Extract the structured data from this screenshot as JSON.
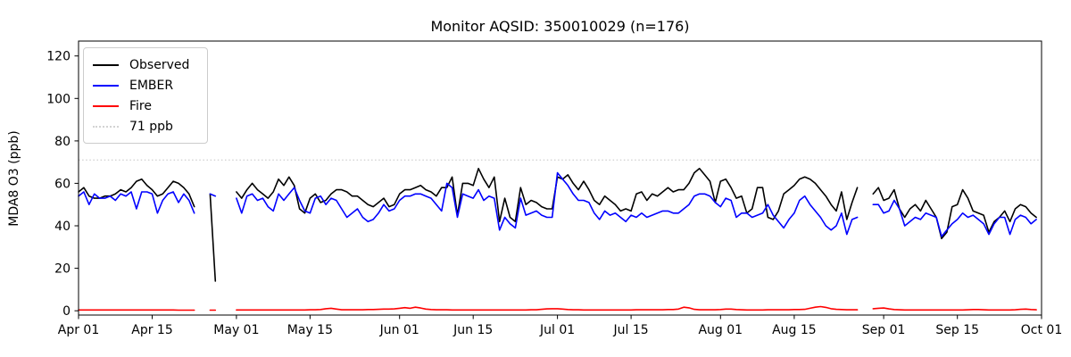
{
  "title": "Monitor AQSID: 350010029 (n=176)",
  "axes": {
    "ylabel": "MDA8 O3 (ppb)",
    "y_ticks": [
      0,
      20,
      40,
      60,
      80,
      100,
      120
    ],
    "x_ticks": [
      {
        "day": 0,
        "label": "Apr 01"
      },
      {
        "day": 14,
        "label": "Apr 15"
      },
      {
        "day": 30,
        "label": "May 01"
      },
      {
        "day": 44,
        "label": "May 15"
      },
      {
        "day": 61,
        "label": "Jun 01"
      },
      {
        "day": 75,
        "label": "Jun 15"
      },
      {
        "day": 91,
        "label": "Jul 01"
      },
      {
        "day": 105,
        "label": "Jul 15"
      },
      {
        "day": 122,
        "label": "Aug 01"
      },
      {
        "day": 136,
        "label": "Aug 15"
      },
      {
        "day": 153,
        "label": "Sep 01"
      },
      {
        "day": 167,
        "label": "Sep 15"
      },
      {
        "day": 183,
        "label": "Oct 01"
      }
    ]
  },
  "legend": [
    {
      "label": "Observed",
      "color": "#000000",
      "style": "solid"
    },
    {
      "label": "EMBER",
      "color": "#0000ff",
      "style": "solid"
    },
    {
      "label": "Fire",
      "color": "#ff0000",
      "style": "solid"
    },
    {
      "label": "71 ppb",
      "color": "#d3d3d3",
      "style": "dotted"
    }
  ],
  "chart_data": {
    "type": "line",
    "title": "Monitor AQSID: 350010029 (n=176)",
    "xlabel": "",
    "ylabel": "MDA8 O3 (ppb)",
    "x_unit": "days since Apr 01 (tick labels Apr 01 - Oct 01)",
    "n_days": 183,
    "ylim": [
      -2,
      127
    ],
    "grid": false,
    "legend_position": "upper left",
    "threshold_ppb": 71,
    "n_points": 176,
    "series": [
      {
        "name": "Observed",
        "color": "#000000",
        "values": [
          56,
          58,
          54,
          53,
          53,
          54,
          54,
          55,
          57,
          56,
          58,
          61,
          62,
          59,
          57,
          54,
          55,
          58,
          61,
          60,
          58,
          55,
          49,
          null,
          null,
          55,
          14,
          null,
          null,
          null,
          56,
          53,
          57,
          60,
          57,
          55,
          53,
          56,
          62,
          59,
          63,
          59,
          48,
          46,
          53,
          55,
          51,
          52,
          55,
          57,
          57,
          56,
          54,
          54,
          52,
          50,
          49,
          51,
          53,
          49,
          50,
          55,
          57,
          57,
          58,
          59,
          57,
          56,
          54,
          58,
          58,
          63,
          45,
          60,
          60,
          59,
          67,
          62,
          58,
          63,
          42,
          53,
          44,
          42,
          58,
          50,
          52,
          51,
          49,
          48,
          48,
          63,
          62,
          64,
          60,
          57,
          61,
          57,
          52,
          50,
          54,
          52,
          50,
          47,
          48,
          47,
          55,
          56,
          52,
          55,
          54,
          56,
          58,
          56,
          57,
          57,
          60,
          65,
          67,
          64,
          61,
          51,
          61,
          62,
          58,
          53,
          54,
          46,
          48,
          58,
          58,
          44,
          43,
          47,
          55,
          57,
          59,
          62,
          63,
          62,
          60,
          57,
          54,
          50,
          47,
          56,
          43,
          51,
          58,
          null,
          null,
          55,
          58,
          52,
          53,
          57,
          48,
          44,
          48,
          50,
          47,
          52,
          48,
          44,
          34,
          37,
          49,
          50,
          57,
          53,
          47,
          46,
          45,
          37,
          42,
          44,
          47,
          42,
          48,
          50,
          49,
          46,
          44
        ]
      },
      {
        "name": "EMBER",
        "color": "#0000ff",
        "values": [
          54,
          56,
          50,
          55,
          53,
          53,
          54,
          52,
          55,
          54,
          56,
          48,
          56,
          56,
          55,
          46,
          52,
          55,
          56,
          51,
          55,
          52,
          46,
          null,
          null,
          55,
          54,
          null,
          null,
          null,
          53,
          46,
          54,
          55,
          52,
          53,
          49,
          47,
          55,
          52,
          55,
          58,
          52,
          47,
          46,
          53,
          54,
          50,
          53,
          52,
          48,
          44,
          46,
          48,
          44,
          42,
          43,
          46,
          50,
          47,
          48,
          52,
          54,
          54,
          55,
          55,
          54,
          53,
          50,
          47,
          60,
          58,
          44,
          55,
          54,
          53,
          57,
          52,
          54,
          53,
          38,
          44,
          41,
          39,
          53,
          45,
          46,
          47,
          45,
          44,
          44,
          65,
          62,
          59,
          55,
          52,
          52,
          51,
          46,
          43,
          47,
          45,
          46,
          44,
          42,
          45,
          44,
          46,
          44,
          45,
          46,
          47,
          47,
          46,
          46,
          48,
          50,
          54,
          55,
          55,
          54,
          51,
          49,
          53,
          52,
          44,
          46,
          46,
          44,
          45,
          46,
          50,
          45,
          42,
          39,
          43,
          46,
          52,
          54,
          50,
          47,
          44,
          40,
          38,
          40,
          46,
          36,
          43,
          44,
          null,
          null,
          50,
          50,
          46,
          47,
          52,
          48,
          40,
          42,
          44,
          43,
          46,
          45,
          44,
          35,
          38,
          41,
          43,
          46,
          44,
          45,
          43,
          41,
          36,
          41,
          44,
          44,
          36,
          43,
          45,
          44,
          41,
          43
        ]
      },
      {
        "name": "Fire",
        "color": "#ff0000",
        "values": [
          0.4,
          0.4,
          0.4,
          0.4,
          0.4,
          0.4,
          0.4,
          0.4,
          0.4,
          0.4,
          0.4,
          0.4,
          0.4,
          0.4,
          0.4,
          0.4,
          0.4,
          0.4,
          0.4,
          0.3,
          0.3,
          0.3,
          0.3,
          null,
          null,
          0.3,
          0.3,
          null,
          null,
          null,
          0.4,
          0.4,
          0.4,
          0.4,
          0.4,
          0.4,
          0.4,
          0.4,
          0.4,
          0.4,
          0.4,
          0.4,
          0.4,
          0.4,
          0.5,
          0.5,
          0.6,
          1.0,
          1.2,
          0.8,
          0.5,
          0.5,
          0.5,
          0.5,
          0.5,
          0.6,
          0.6,
          0.7,
          0.8,
          0.8,
          0.9,
          1.2,
          1.5,
          1.2,
          1.7,
          1.3,
          0.8,
          0.6,
          0.5,
          0.5,
          0.5,
          0.4,
          0.4,
          0.4,
          0.4,
          0.4,
          0.4,
          0.4,
          0.4,
          0.4,
          0.4,
          0.4,
          0.4,
          0.4,
          0.4,
          0.4,
          0.5,
          0.5,
          0.7,
          0.9,
          1.0,
          1.0,
          0.8,
          0.6,
          0.5,
          0.5,
          0.4,
          0.4,
          0.4,
          0.4,
          0.4,
          0.4,
          0.4,
          0.4,
          0.4,
          0.4,
          0.5,
          0.5,
          0.5,
          0.5,
          0.5,
          0.5,
          0.6,
          0.6,
          0.8,
          1.7,
          1.4,
          0.7,
          0.5,
          0.5,
          0.5,
          0.5,
          0.6,
          0.8,
          0.8,
          0.6,
          0.5,
          0.4,
          0.4,
          0.4,
          0.4,
          0.5,
          0.5,
          0.5,
          0.5,
          0.5,
          0.6,
          0.6,
          0.7,
          1.2,
          1.7,
          2.0,
          1.6,
          1.0,
          0.7,
          0.6,
          0.5,
          0.5,
          0.5,
          null,
          null,
          1.0,
          1.2,
          1.3,
          0.9,
          0.6,
          0.5,
          0.4,
          0.4,
          0.4,
          0.4,
          0.4,
          0.4,
          0.4,
          0.4,
          0.4,
          0.4,
          0.4,
          0.4,
          0.5,
          0.6,
          0.6,
          0.5,
          0.4,
          0.4,
          0.4,
          0.4,
          0.4,
          0.5,
          0.7,
          0.8,
          0.6,
          0.5
        ]
      }
    ]
  }
}
